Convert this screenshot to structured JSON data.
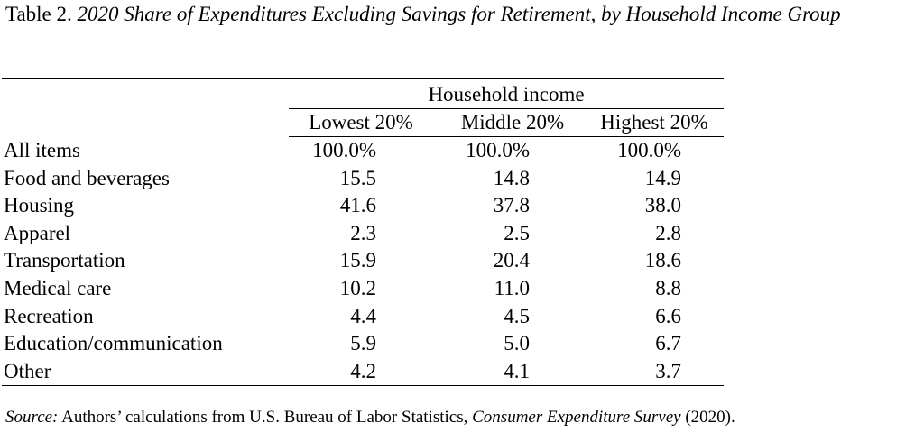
{
  "title": {
    "prefix": "Table 2.",
    "italic": "2020 Share of Expenditures Excluding Savings for Retirement, by Household Income Group"
  },
  "table": {
    "group_header": "Household income",
    "columns": [
      "Lowest 20%",
      "Middle 20%",
      "Highest 20%"
    ],
    "rows": [
      {
        "label": "All items",
        "values": [
          "100.0%",
          "100.0%",
          "100.0%"
        ]
      },
      {
        "label": "Food and beverages",
        "values": [
          "15.5",
          "14.8",
          "14.9"
        ]
      },
      {
        "label": "Housing",
        "values": [
          "41.6",
          "37.8",
          "38.0"
        ]
      },
      {
        "label": "Apparel",
        "values": [
          "2.3",
          "2.5",
          "2.8"
        ]
      },
      {
        "label": "Transportation",
        "values": [
          "15.9",
          "20.4",
          "18.6"
        ]
      },
      {
        "label": "Medical care",
        "values": [
          "10.2",
          "11.0",
          "8.8"
        ]
      },
      {
        "label": "Recreation",
        "values": [
          "4.4",
          "4.5",
          "6.6"
        ]
      },
      {
        "label": "Education/communication",
        "values": [
          "5.9",
          "5.0",
          "6.7"
        ]
      },
      {
        "label": "Other",
        "values": [
          "4.2",
          "4.1",
          "3.7"
        ]
      }
    ]
  },
  "source": {
    "label": "Source:",
    "text_1": " Authors’ calculations from U.S. Bureau of Labor Statistics, ",
    "italic": "Consumer Expenditure Survey",
    "text_2": " (2020)."
  }
}
